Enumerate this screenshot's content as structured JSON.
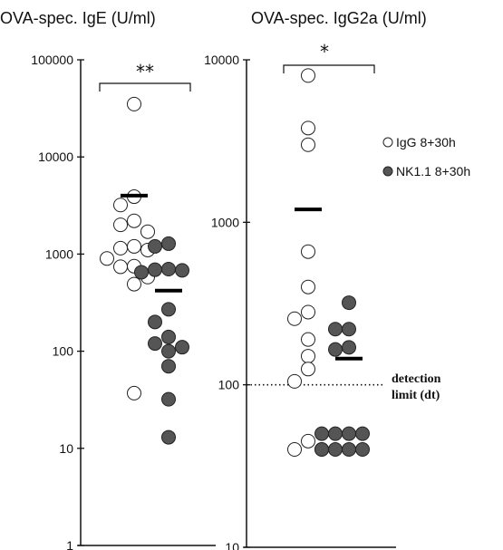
{
  "chart_data": [
    {
      "type": "scatter",
      "title": "OVA-spec. IgE (U/ml)",
      "yscale": "log",
      "ylim": [
        1,
        100000
      ],
      "yticks": [
        "1",
        "10",
        "100",
        "1000",
        "10000",
        "100000"
      ],
      "significance": "**",
      "series": [
        {
          "name": "IgG 8+30h",
          "values": [
            35000,
            3900,
            3200,
            2200,
            2000,
            1700,
            1200,
            1150,
            1100,
            900,
            750,
            740,
            580,
            490,
            37
          ],
          "mean": 4000
        },
        {
          "name": "NK1.1 8+30h",
          "values": [
            1280,
            1200,
            700,
            690,
            680,
            650,
            270,
            200,
            140,
            120,
            110,
            100,
            70,
            32,
            13
          ],
          "mean": 420
        }
      ]
    },
    {
      "type": "scatter",
      "title": "OVA-spec. IgG2a (U/ml)",
      "yscale": "log",
      "ylim": [
        10,
        10000
      ],
      "yticks": [
        "10",
        "100",
        "1000",
        "10000"
      ],
      "significance": "*",
      "detection_limit": {
        "value": 100,
        "label_line1": "detection",
        "label_line2": "limit (dt)"
      },
      "series": [
        {
          "name": "IgG 8+30h",
          "values": [
            8000,
            3800,
            3000,
            660,
            400,
            280,
            255,
            190,
            150,
            125,
            105,
            45,
            40,
            40
          ],
          "mean": 1200
        },
        {
          "name": "NK1.1 8+30h",
          "values": [
            320,
            220,
            220,
            170,
            165,
            50,
            50,
            50,
            50,
            40,
            40,
            40,
            40
          ],
          "mean": 145
        }
      ]
    }
  ],
  "legend": {
    "items": [
      {
        "label": "IgG 8+30h",
        "style": "open"
      },
      {
        "label": "NK1.1 8+30h",
        "style": "filled"
      }
    ]
  },
  "colors": {
    "open_fill": "#ffffff",
    "filled_fill": "#555555",
    "stroke": "#222222"
  }
}
